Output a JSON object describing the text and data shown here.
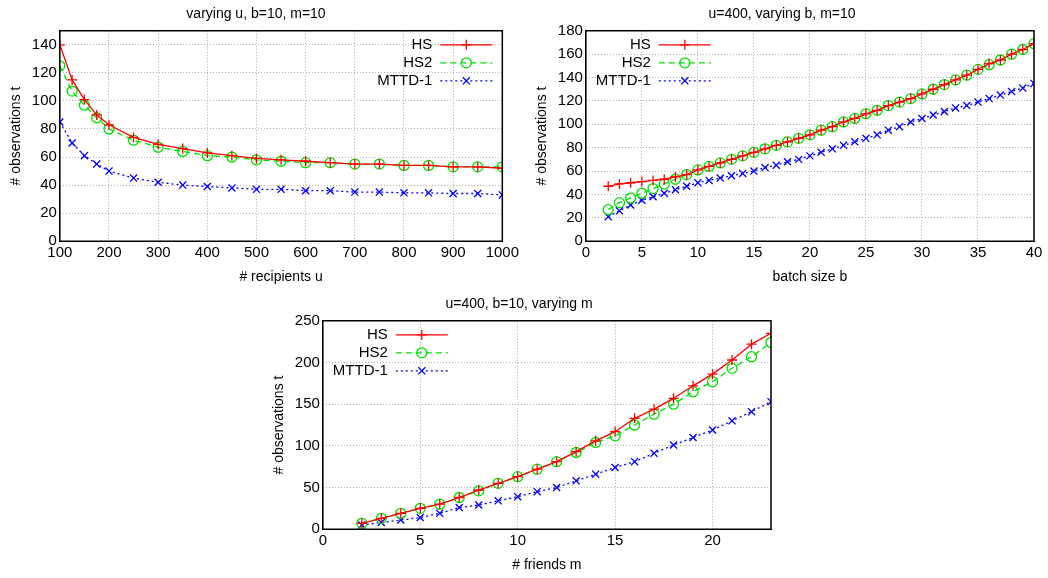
{
  "chart_data": [
    {
      "type": "line",
      "title": "varying u, b=10, m=10",
      "xlabel": "# recipients u",
      "ylabel": "# observations t",
      "xlim": [
        100,
        1000
      ],
      "xticks": [
        100,
        200,
        300,
        400,
        500,
        600,
        700,
        800,
        900,
        1000
      ],
      "ylim": [
        0,
        150
      ],
      "yticks": [
        0,
        20,
        40,
        60,
        80,
        100,
        120,
        140
      ],
      "grid": true,
      "legend": "top right",
      "x": [
        100,
        125,
        150,
        175,
        200,
        250,
        300,
        350,
        400,
        450,
        500,
        550,
        600,
        650,
        700,
        750,
        800,
        850,
        900,
        950,
        1000
      ],
      "series": [
        {
          "name": "HS",
          "color": "#ff0000",
          "marker": "cross",
          "line_style": "solid",
          "values": [
            140,
            115,
            101,
            90,
            83,
            74,
            69,
            66,
            63,
            61,
            59,
            58,
            57,
            56,
            55,
            55,
            54,
            54,
            53,
            53,
            52
          ]
        },
        {
          "name": "HS2",
          "color": "#00e000",
          "marker": "circle",
          "line_style": "dashed",
          "values": [
            125,
            107,
            97,
            88,
            80,
            72,
            67,
            64,
            61,
            60,
            58,
            57,
            56,
            56,
            55,
            55,
            54,
            54,
            53,
            53,
            53
          ]
        },
        {
          "name": "MTTD-1",
          "color": "#0000ff",
          "marker": "x",
          "line_style": "dotted",
          "values": [
            85,
            70,
            61,
            55,
            50,
            45,
            42,
            40,
            39,
            38,
            37,
            37,
            36,
            36,
            35,
            35,
            34.5,
            34.5,
            34,
            34,
            33
          ]
        }
      ]
    },
    {
      "type": "line",
      "title": "u=400, varying b, m=10",
      "xlabel": "batch size b",
      "ylabel": "# observations t",
      "xlim": [
        0,
        40
      ],
      "xticks": [
        0,
        5,
        10,
        15,
        20,
        25,
        30,
        35,
        40
      ],
      "ylim": [
        0,
        180
      ],
      "yticks": [
        0,
        20,
        40,
        60,
        80,
        100,
        120,
        140,
        160,
        180
      ],
      "grid": true,
      "legend": "top left",
      "x": [
        2,
        3,
        4,
        5,
        6,
        7,
        8,
        9,
        10,
        11,
        12,
        13,
        14,
        15,
        16,
        17,
        18,
        19,
        20,
        21,
        22,
        23,
        24,
        25,
        26,
        27,
        28,
        29,
        30,
        31,
        32,
        33,
        34,
        35,
        36,
        37,
        38,
        39,
        40
      ],
      "series": [
        {
          "name": "HS",
          "color": "#ff0000",
          "marker": "cross",
          "line_style": "solid",
          "values": [
            47,
            49,
            50,
            51,
            52,
            53,
            55,
            57,
            61,
            64,
            67,
            70,
            73,
            76,
            79,
            82,
            85,
            88,
            91,
            95,
            98,
            102,
            105,
            109,
            112,
            116,
            119,
            122,
            126,
            130,
            134,
            138,
            142,
            147,
            152,
            155,
            160,
            164,
            169
          ]
        },
        {
          "name": "HS2",
          "color": "#00e000",
          "marker": "circle",
          "line_style": "dashed",
          "values": [
            27,
            33,
            37,
            41,
            45,
            49,
            53,
            57,
            61,
            64,
            67,
            70,
            73,
            76,
            79,
            82,
            85,
            88,
            91,
            95,
            98,
            102,
            105,
            109,
            112,
            116,
            119,
            122,
            126,
            130,
            134,
            138,
            142,
            147,
            151,
            155,
            160,
            164,
            169
          ]
        },
        {
          "name": "MTTD-1",
          "color": "#0000ff",
          "marker": "x",
          "line_style": "dotted",
          "values": [
            21,
            26,
            31,
            35,
            38,
            41,
            44,
            47,
            50,
            52,
            54,
            56,
            58,
            60,
            63,
            65,
            68,
            70,
            73,
            76,
            79,
            82,
            85,
            88,
            91,
            95,
            98,
            102,
            105,
            108,
            111,
            114,
            116,
            119,
            122,
            125,
            128,
            131,
            135
          ]
        }
      ]
    },
    {
      "type": "line",
      "title": "u=400, b=10, varying m",
      "xlabel": "# friends m",
      "ylabel": "# observations t",
      "xlim": [
        0,
        23
      ],
      "xticks": [
        0,
        5,
        10,
        15,
        20
      ],
      "ylim": [
        0,
        250
      ],
      "yticks": [
        0,
        50,
        100,
        150,
        200,
        250
      ],
      "grid": true,
      "legend": "top left",
      "x": [
        2,
        3,
        4,
        5,
        6,
        7,
        8,
        9,
        10,
        11,
        12,
        13,
        14,
        15,
        16,
        17,
        18,
        19,
        20,
        21,
        22,
        23
      ],
      "series": [
        {
          "name": "HS",
          "color": "#ff0000",
          "marker": "cross",
          "line_style": "solid",
          "values": [
            7,
            13,
            19,
            25,
            30,
            38,
            47,
            55,
            63,
            72,
            81,
            93,
            106,
            117,
            133,
            144,
            157,
            172,
            186,
            203,
            222,
            235
          ]
        },
        {
          "name": "HS2",
          "color": "#00e000",
          "marker": "circle",
          "line_style": "dashed",
          "values": [
            7,
            13,
            19,
            25,
            30,
            38,
            46,
            55,
            63,
            72,
            81,
            92,
            104,
            112,
            125,
            138,
            150,
            165,
            177,
            193,
            207,
            224
          ]
        },
        {
          "name": "MTTD-1",
          "color": "#0000ff",
          "marker": "x",
          "line_style": "dotted",
          "values": [
            5,
            8,
            11,
            14,
            19,
            26,
            29,
            34,
            39,
            45,
            50,
            58,
            66,
            74,
            81,
            91,
            101,
            110,
            119,
            130,
            141,
            153
          ]
        }
      ]
    }
  ]
}
